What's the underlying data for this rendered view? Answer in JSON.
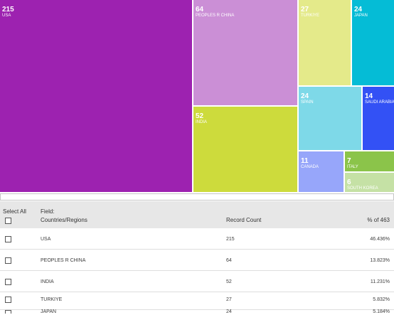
{
  "chart_data": {
    "type": "treemap",
    "items": [
      {
        "label": "USA",
        "value": 215,
        "color": "#9d22b0"
      },
      {
        "label": "PEOPLES R CHINA",
        "value": 64,
        "color": "#cb8fd6"
      },
      {
        "label": "INDIA",
        "value": 52,
        "color": "#cddb3c"
      },
      {
        "label": "TURKIYE",
        "value": 27,
        "color": "#e4ea8a"
      },
      {
        "label": "JAPAN",
        "value": 24,
        "color": "#05bcd6"
      },
      {
        "label": "SPAIN",
        "value": 24,
        "color": "#7ed9e8"
      },
      {
        "label": "SAUDI ARABIA",
        "value": 14,
        "color": "#3351f5"
      },
      {
        "label": "CANADA",
        "value": 11,
        "color": "#97a6fa"
      },
      {
        "label": "ITALY",
        "value": 7,
        "color": "#8bc44a"
      },
      {
        "label": "SOUTH KOREA",
        "value": 6,
        "color": "#c5e1a5"
      }
    ]
  },
  "table": {
    "select_all_label": "Select All",
    "field_label": "Field:",
    "field_name": "Countries/Regions",
    "record_count_header": "Record Count",
    "percent_header": "% of 463",
    "rows": [
      {
        "country": "USA",
        "count": "215",
        "percent": "46.436%"
      },
      {
        "country": "PEOPLES R CHINA",
        "count": "64",
        "percent": "13.823%"
      },
      {
        "country": "INDIA",
        "count": "52",
        "percent": "11.231%"
      },
      {
        "country": "TURKIYE",
        "count": "27",
        "percent": "5.832%"
      },
      {
        "country": "JAPAN",
        "count": "24",
        "percent": "5.184%"
      }
    ]
  }
}
